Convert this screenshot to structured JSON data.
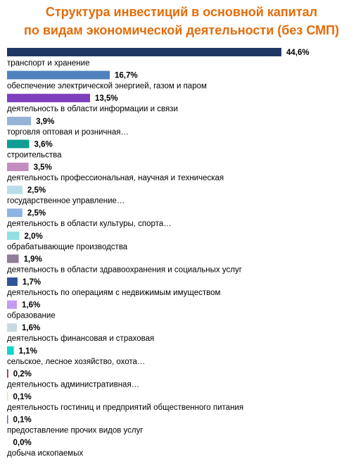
{
  "chart_data": {
    "type": "bar",
    "orientation": "horizontal",
    "title": "Структура инвестиций в основной капитал по видам экономической деятельности (без СМП)",
    "title_lines": [
      "Структура инвестиций в основной капитал",
      "по видам экономической деятельности (без СМП)"
    ],
    "unit": "%",
    "categories": [
      "транспорт и хранение",
      "обеспечение электрической энергией, газом и паром",
      "деятельность в области информации и связи",
      "торговля оптовая и розничная…",
      "строительства",
      "деятельность профессиональная, научная и техническая",
      "государственное управление…",
      "деятельность в области культуры, спорта…",
      "обрабатывающие производства",
      "деятельность в области здравоохранения и социальных услуг",
      "деятельность по операциям с недвижимым имуществом",
      "образование",
      "деятельность финансовая и страховая",
      "сельское, лесное хозяйство, охота…",
      "деятельность административная…",
      "деятельность гостиниц и предприятий общественного питания",
      "предоставление прочих видов услуг",
      "добыча ископаемых"
    ],
    "values": [
      44.6,
      16.7,
      13.5,
      3.9,
      3.6,
      3.5,
      2.5,
      2.5,
      2.0,
      1.9,
      1.7,
      1.6,
      1.6,
      1.1,
      0.2,
      0.1,
      0.1,
      0.0
    ],
    "value_labels": [
      "44,6%",
      "16,7%",
      "13,5%",
      "3,9%",
      "3,6%",
      "3,5%",
      "2,5%",
      "2,5%",
      "2,0%",
      "1,9%",
      "1,7%",
      "1,6%",
      "1,6%",
      "1,1%",
      "0,2%",
      "0,1%",
      "0,1%",
      "0,0%"
    ],
    "colors": [
      "#1F3864",
      "#4F81BD",
      "#7E3FBE",
      "#95B3D7",
      "#0E9E93",
      "#C48DBF",
      "#B7DEE8",
      "#8EB4E3",
      "#92DFE3",
      "#8F7C95",
      "#2E5597",
      "#C39BF1",
      "#C9D9E2",
      "#11D4CE",
      "#B21A4E",
      "#D8E4BC",
      "#5B6FB3",
      "#FFFFFF"
    ],
    "title_color": "#E46C0A",
    "grid": false,
    "legend": "none"
  }
}
